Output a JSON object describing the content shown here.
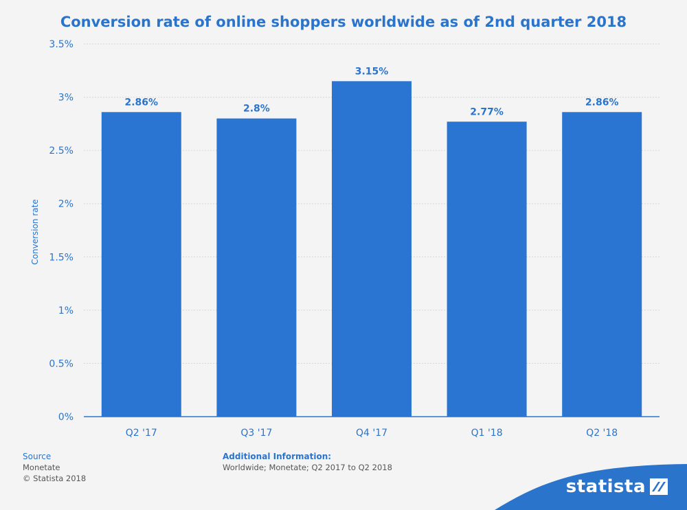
{
  "chart_data": {
    "type": "bar",
    "title": "Conversion rate of online shoppers worldwide as of 2nd quarter 2018",
    "ylabel": "Conversion rate",
    "xlabel": "",
    "categories": [
      "Q2 '17",
      "Q3 '17",
      "Q4 '17",
      "Q1 '18",
      "Q2 '18"
    ],
    "values": [
      2.86,
      2.8,
      3.15,
      2.77,
      2.86
    ],
    "data_labels": [
      "2.86%",
      "2.8%",
      "3.15%",
      "2.77%",
      "2.86%"
    ],
    "ylim": [
      0,
      3.5
    ],
    "yticks": [
      0,
      0.5,
      1,
      1.5,
      2,
      2.5,
      3,
      3.5
    ],
    "ytick_labels": [
      "0%",
      "0.5%",
      "1%",
      "1.5%",
      "2%",
      "2.5%",
      "3%",
      "3.5%"
    ],
    "grid": true,
    "bar_color": "#2a74d2"
  },
  "footer": {
    "source_heading": "Source",
    "source_name": "Monetate",
    "copyright": "© Statista 2018",
    "info_heading": "Additional Information:",
    "info_text": "Worldwide; Monetate; Q2 2017 to Q2 2018"
  },
  "brand": {
    "name": "statista",
    "color": "#2a74cc"
  }
}
